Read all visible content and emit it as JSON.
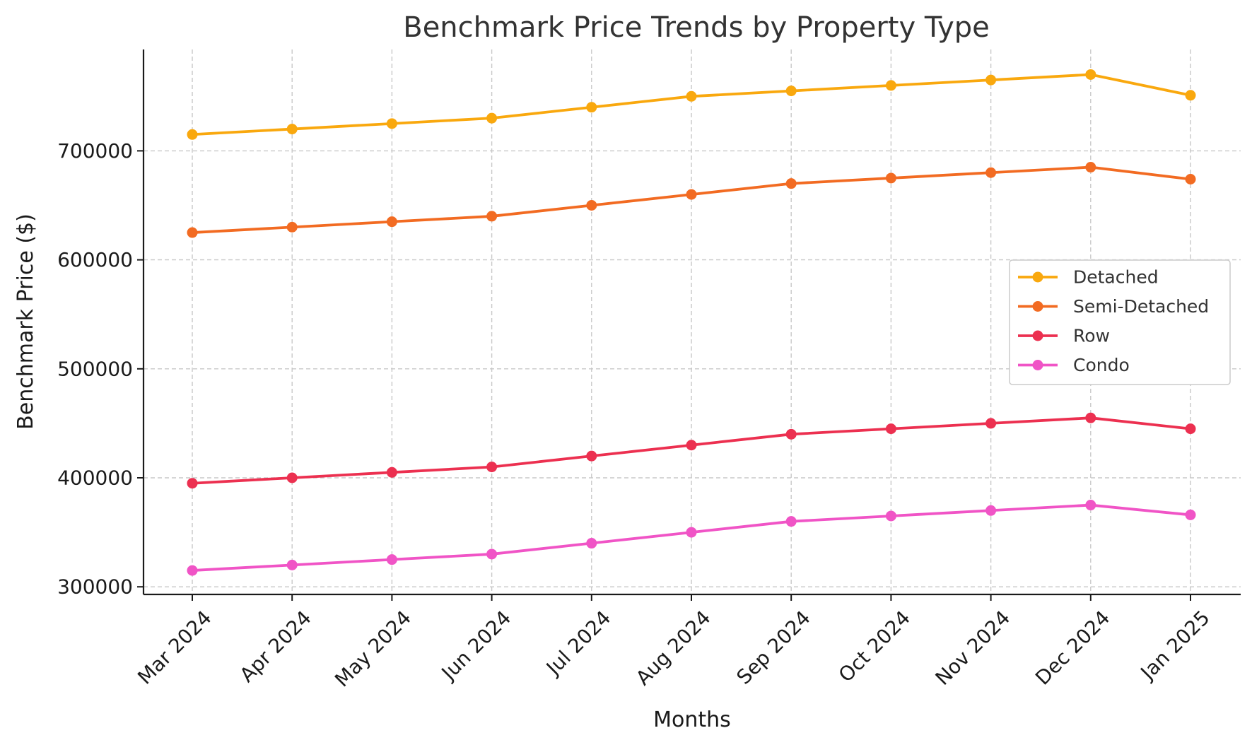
{
  "chart_data": {
    "type": "line",
    "title": "Benchmark Price Trends by Property Type",
    "xlabel": "Months",
    "ylabel": "Benchmark Price ($)",
    "categories": [
      "Mar 2024",
      "Apr 2024",
      "May 2024",
      "Jun 2024",
      "Jul 2024",
      "Aug 2024",
      "Sep 2024",
      "Oct 2024",
      "Nov 2024",
      "Dec 2024",
      "Jan 2025"
    ],
    "yticks": [
      300000,
      400000,
      500000,
      600000,
      700000
    ],
    "ylim": [
      293000,
      793000
    ],
    "grid": true,
    "legend_position": "center-right",
    "series": [
      {
        "name": "Detached",
        "color": "#F9A80E",
        "values": [
          715000,
          720000,
          725000,
          730000,
          740000,
          750000,
          755000,
          760000,
          765000,
          770000,
          751000
        ]
      },
      {
        "name": "Semi-Detached",
        "color": "#F26B22",
        "values": [
          625000,
          630000,
          635000,
          640000,
          650000,
          660000,
          670000,
          675000,
          680000,
          685000,
          674000
        ]
      },
      {
        "name": "Row",
        "color": "#EC3050",
        "values": [
          395000,
          400000,
          405000,
          410000,
          420000,
          430000,
          440000,
          445000,
          450000,
          455000,
          445000
        ]
      },
      {
        "name": "Condo",
        "color": "#F054C6",
        "values": [
          315000,
          320000,
          325000,
          330000,
          340000,
          350000,
          360000,
          365000,
          370000,
          375000,
          366000
        ]
      }
    ]
  }
}
